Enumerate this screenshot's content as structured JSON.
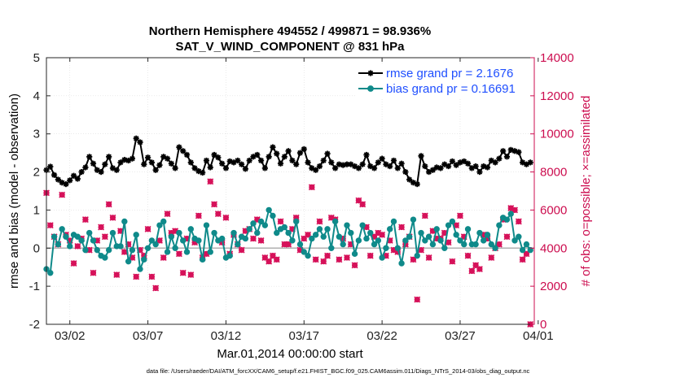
{
  "colors": {
    "rmse": "#000000",
    "bias": "#0f8a8a",
    "obs": "#d6125a",
    "right_axis": "#cc0d4f",
    "legend_text": "#1f4fff",
    "zero_line": "#b0b0b0",
    "grid": "#dddddd"
  },
  "chart_data": {
    "type": "line",
    "title": "Northern Hemisphere 494552 / 499871 = 98.936%",
    "subtitle": "SAT_V_WIND_COMPONENT @ 831 hPa",
    "xlabel": "Mar.01,2014 00:00:00 start",
    "ylabel": "rmse and bias (model - observation)",
    "y2label": "# of obs: o=possible; ×=assimilated",
    "footer": "data file: /Users/raeder/DAI/ATM_forcXX/CAM6_setup/f.e21.FHIST_BGC.f09_025.CAM6assim.011/Diags_NTrS_2014-03/obs_diag_output.nc",
    "xlim": [
      0.5,
      31.75
    ],
    "ylim": [
      -2,
      5
    ],
    "y2lim": [
      0,
      14000
    ],
    "xticks": [
      2,
      7,
      12,
      17,
      22,
      27,
      32
    ],
    "xtick_labels": [
      "03/02",
      "03/07",
      "03/12",
      "03/17",
      "03/22",
      "03/27",
      "04/01"
    ],
    "yticks": [
      -2,
      -1,
      0,
      1,
      2,
      3,
      4,
      5
    ],
    "y2ticks": [
      0,
      2000,
      4000,
      6000,
      8000,
      10000,
      12000,
      14000
    ],
    "grid": true,
    "legend_position": "top-right",
    "x_start": 0.5,
    "x_step": 0.25,
    "series": [
      {
        "name": "rmse grand pr = 2.1676",
        "axis": "left",
        "marker": "*",
        "values": [
          2.05,
          2.14,
          1.92,
          1.8,
          1.72,
          1.68,
          1.78,
          1.9,
          1.82,
          2.0,
          2.12,
          2.4,
          2.22,
          2.05,
          2.0,
          2.2,
          2.4,
          2.1,
          2.05,
          2.25,
          2.32,
          2.3,
          2.35,
          2.88,
          2.78,
          2.2,
          2.38,
          2.25,
          2.05,
          2.18,
          2.4,
          2.35,
          2.22,
          2.1,
          2.65,
          2.55,
          2.45,
          2.25,
          2.1,
          2.02,
          1.98,
          2.3,
          2.12,
          2.45,
          2.38,
          2.22,
          2.1,
          2.28,
          2.25,
          2.3,
          2.2,
          2.08,
          2.3,
          2.4,
          2.45,
          2.3,
          2.1,
          2.4,
          2.65,
          2.48,
          2.22,
          2.4,
          2.55,
          2.3,
          2.2,
          2.5,
          2.6,
          2.25,
          2.1,
          2.05,
          2.15,
          2.3,
          2.48,
          2.25,
          2.1,
          2.2,
          2.18,
          2.2,
          2.2,
          2.15,
          2.1,
          2.2,
          2.45,
          2.15,
          2.1,
          2.25,
          2.35,
          2.2,
          2.15,
          2.3,
          2.1,
          2.22,
          2.0,
          1.8,
          1.72,
          1.68,
          2.42,
          2.15,
          2.0,
          2.05,
          2.12,
          2.1,
          2.2,
          2.15,
          2.28,
          2.18,
          2.25,
          2.28,
          2.22,
          2.1,
          2.15,
          2.0,
          2.15,
          2.12,
          2.3,
          2.25,
          2.35,
          2.55,
          2.4,
          2.58,
          2.55,
          2.52,
          2.25,
          2.2,
          2.25
        ]
      },
      {
        "name": "bias grand pr = 0.16691",
        "axis": "left",
        "marker": "o",
        "values": [
          -0.55,
          -0.65,
          0.3,
          0.1,
          0.5,
          0.3,
          0.05,
          0.35,
          0.3,
          0.2,
          -0.05,
          0.4,
          0.2,
          -0.05,
          -0.2,
          -0.25,
          -0.05,
          0.4,
          0.05,
          0.05,
          0.7,
          -0.35,
          -0.05,
          0.35,
          -0.55,
          -0.3,
          0.0,
          0.2,
          0.1,
          0.6,
          0.7,
          -0.1,
          0.3,
          0.0,
          0.4,
          0.2,
          -0.1,
          0.5,
          0.25,
          0.2,
          -0.3,
          0.6,
          -0.1,
          0.4,
          0.2,
          0.25,
          -0.25,
          -0.2,
          0.4,
          0.1,
          0.3,
          0.25,
          0.5,
          0.65,
          0.4,
          0.7,
          0.6,
          1.0,
          0.85,
          0.4,
          0.5,
          0.55,
          0.4,
          0.2,
          0.7,
          0.1,
          -0.1,
          -0.2,
          0.25,
          0.35,
          0.5,
          0.3,
          0.5,
          0.0,
          0.7,
          0.3,
          0.1,
          0.6,
          0.4,
          -0.15,
          0.2,
          0.6,
          0.25,
          0.4,
          0.1,
          0.2,
          -0.25,
          0.0,
          0.5,
          0.7,
          0.0,
          -0.4,
          0.2,
          0.3,
          0.75,
          -0.2,
          0.4,
          0.2,
          0.3,
          0.1,
          0.5,
          0.2,
          0.0,
          0.6,
          0.7,
          0.35,
          0.2,
          0.1,
          0.5,
          0.1,
          0.1,
          0.4,
          0.2,
          0.35,
          0.1,
          0.0,
          0.6,
          0.8,
          0.75,
          0.9,
          0.2,
          0.3,
          -0.05,
          0.1,
          -0.05
        ]
      },
      {
        "name": "possible",
        "axis": "right",
        "marker": "o",
        "values": [
          6900,
          5200,
          4600,
          4200,
          6800,
          4700,
          4400,
          3200,
          4100,
          4500,
          5500,
          3900,
          2700,
          4400,
          5100,
          4600,
          6300,
          5600,
          2600,
          4900,
          3800,
          4200,
          3500,
          2500,
          3900,
          3600,
          5000,
          2500,
          1900,
          4400,
          3500,
          5800,
          4800,
          4900,
          3700,
          2700,
          4500,
          2600,
          4300,
          5700,
          3500,
          3700,
          7500,
          6300,
          5800,
          4300,
          5600,
          3700,
          4700,
          4200,
          3900,
          4900,
          5000,
          4500,
          5500,
          4400,
          3500,
          3300,
          3600,
          3400,
          5400,
          4200,
          4200,
          5000,
          5600,
          3900,
          4500,
          4700,
          7200,
          3400,
          5400,
          3300,
          3600,
          5600,
          5500,
          3400,
          4500,
          3500,
          4200,
          3100,
          6500,
          6300,
          5100,
          3600,
          4600,
          4800,
          4700,
          3600,
          4400,
          3900,
          3800,
          5100,
          4200,
          4600,
          3400,
          1300,
          3900,
          5700,
          3500,
          4900,
          4500,
          4500,
          4800,
          4300,
          3300,
          5200,
          5700,
          4600,
          3600,
          2800,
          3100,
          2900,
          4700,
          4500,
          3500,
          4000,
          4200,
          5500,
          4600,
          6100,
          6000,
          5400,
          3400,
          3700,
          0
        ]
      },
      {
        "name": "assimilated",
        "axis": "right",
        "marker": "x",
        "values": [
          6900,
          5200,
          4600,
          4200,
          6800,
          4700,
          4400,
          3200,
          4100,
          4500,
          5500,
          3900,
          2700,
          4400,
          5100,
          4600,
          6300,
          5600,
          2600,
          4900,
          3800,
          4200,
          3500,
          2500,
          3900,
          3600,
          5000,
          2500,
          1900,
          4400,
          3500,
          5800,
          4800,
          4900,
          3700,
          2700,
          4500,
          2600,
          4300,
          5700,
          3500,
          3700,
          7500,
          6300,
          5800,
          4300,
          5600,
          3700,
          4700,
          4200,
          3900,
          4900,
          5000,
          4500,
          5500,
          4400,
          3500,
          3300,
          3600,
          3400,
          5400,
          4200,
          4200,
          5000,
          5600,
          3900,
          4500,
          4700,
          7200,
          3400,
          5400,
          3300,
          3600,
          5600,
          5500,
          3400,
          4500,
          3500,
          4200,
          3100,
          6500,
          6300,
          5100,
          3600,
          4600,
          4800,
          4700,
          3600,
          4400,
          3900,
          3800,
          5100,
          4200,
          4600,
          3400,
          1300,
          3900,
          5700,
          3500,
          4900,
          4500,
          4500,
          4800,
          4300,
          3300,
          5200,
          5700,
          4600,
          3600,
          2800,
          3100,
          2900,
          4700,
          4500,
          3500,
          4000,
          4200,
          5500,
          4600,
          6100,
          6000,
          5400,
          3400,
          3700,
          0
        ]
      }
    ]
  }
}
